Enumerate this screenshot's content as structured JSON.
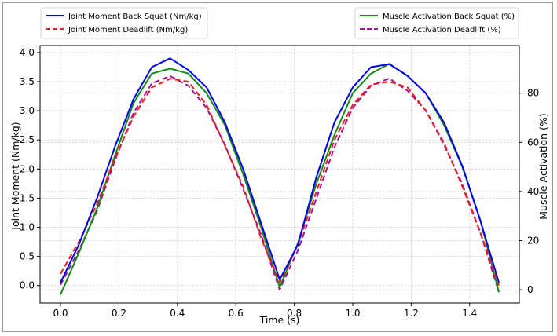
{
  "chart_data": {
    "type": "line",
    "xlabel": "Time (s)",
    "ylabel": "Joint Moment (Nm/kg)",
    "y2label": "Muscle Activation (%)",
    "xlim": [
      -0.07,
      1.57
    ],
    "ylim": [
      -0.3,
      4.12
    ],
    "y2lim": [
      -5.4,
      99.4
    ],
    "xticks": [
      0.0,
      0.2,
      0.4,
      0.6,
      0.8,
      1.0,
      1.2,
      1.4
    ],
    "xtick_labels": [
      "0.0",
      "0.2",
      "0.4",
      "0.6",
      "0.8",
      "1.0",
      "1.2",
      "1.4"
    ],
    "yticks": [
      0.0,
      0.5,
      1.0,
      1.5,
      2.0,
      2.5,
      3.0,
      3.5,
      4.0
    ],
    "ytick_labels": [
      "0.0",
      "0.5",
      "1.0",
      "1.5",
      "2.0",
      "2.5",
      "3.0",
      "3.5",
      "4.0"
    ],
    "y2ticks": [
      0,
      20,
      40,
      60,
      80
    ],
    "y2tick_labels": [
      "0",
      "20",
      "40",
      "60",
      "80"
    ],
    "grid": true,
    "legend_left": "upper-left",
    "legend_right": "upper-right",
    "x": [
      0.0,
      0.0625,
      0.125,
      0.1875,
      0.25,
      0.3125,
      0.375,
      0.4375,
      0.5,
      0.5625,
      0.625,
      0.6875,
      0.75,
      0.8125,
      0.875,
      0.9375,
      1.0,
      1.0625,
      1.125,
      1.1875,
      1.25,
      1.3125,
      1.375,
      1.4375,
      1.5
    ],
    "series": [
      {
        "name": "Joint Moment Back Squat (Nm/kg)",
        "axis": "left",
        "color": "#0000ee",
        "dash": "solid",
        "values": [
          0.05,
          0.7,
          1.5,
          2.4,
          3.2,
          3.75,
          3.9,
          3.7,
          3.4,
          2.8,
          2.0,
          1.05,
          0.1,
          0.7,
          1.85,
          2.8,
          3.4,
          3.75,
          3.8,
          3.6,
          3.3,
          2.8,
          2.05,
          1.1,
          0.05
        ]
      },
      {
        "name": "Joint Moment Deadlift (Nm/kg)",
        "axis": "left",
        "color": "#ee1c1c",
        "dash": "dashed",
        "values": [
          0.2,
          0.75,
          1.4,
          2.2,
          2.9,
          3.4,
          3.55,
          3.5,
          3.1,
          2.4,
          1.7,
          0.8,
          0.05,
          0.7,
          1.6,
          2.5,
          3.1,
          3.45,
          3.5,
          3.4,
          3.0,
          2.45,
          1.7,
          0.9,
          0.0
        ]
      },
      {
        "name": "Muscle Activation Back Squat (%)",
        "axis": "right",
        "color": "#138a13",
        "dash": "solid",
        "values": [
          -2,
          15,
          33,
          55,
          76,
          88,
          90,
          88,
          80,
          67,
          47,
          25,
          1,
          19,
          43,
          63,
          80,
          88,
          92,
          87,
          80,
          67,
          50,
          28,
          -1
        ]
      },
      {
        "name": "Muscle Activation Deadlift (%)",
        "axis": "right",
        "color": "#a0139b",
        "dash": "dashed",
        "values": [
          2,
          16,
          32,
          53,
          72,
          84,
          87,
          83,
          74,
          59,
          41,
          22,
          0,
          16,
          37,
          58,
          74,
          83,
          86,
          81,
          73,
          59,
          43,
          23,
          -1
        ]
      }
    ]
  }
}
